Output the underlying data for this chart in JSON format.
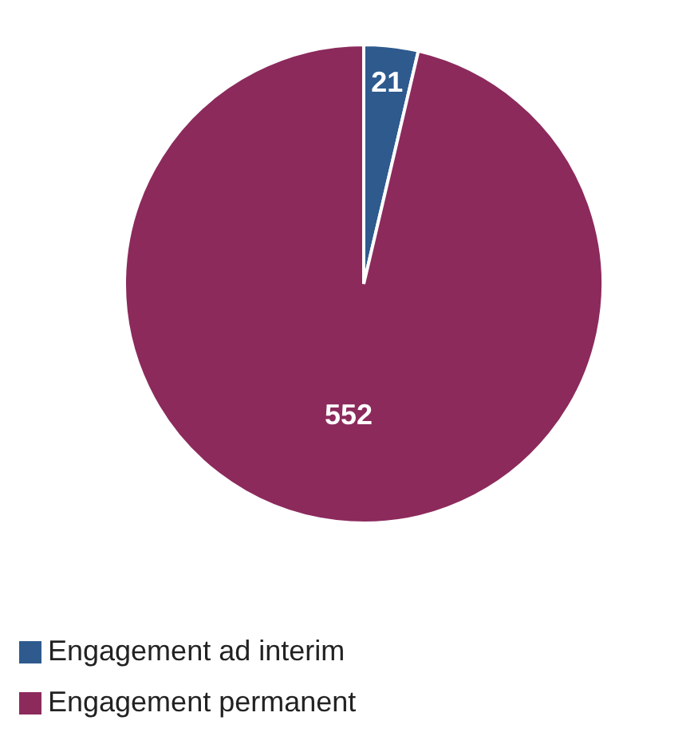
{
  "chart_data": {
    "type": "pie",
    "categories": [
      "Engagement ad interim",
      "Engagement permanent"
    ],
    "values": [
      21,
      552
    ],
    "colors": [
      "#2e5a8e",
      "#8c2a5c"
    ],
    "data_labels": true,
    "legend": "bottom"
  }
}
